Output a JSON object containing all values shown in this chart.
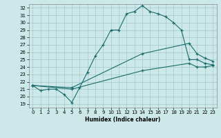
{
  "xlabel": "Humidex (Indice chaleur)",
  "bg_color": "#cce8e8",
  "line_color": "#1a6b6b",
  "xlim": [
    -0.5,
    23.5
  ],
  "ylim": [
    18.5,
    32.5
  ],
  "yticks": [
    19,
    20,
    21,
    22,
    23,
    24,
    25,
    26,
    27,
    28,
    29,
    30,
    31,
    32
  ],
  "xticks": [
    0,
    1,
    2,
    3,
    4,
    5,
    6,
    7,
    8,
    9,
    10,
    11,
    12,
    13,
    14,
    15,
    16,
    17,
    18,
    19,
    20,
    21,
    22,
    23
  ],
  "lines": [
    {
      "x": [
        0,
        1,
        2,
        3,
        4,
        5,
        6,
        7,
        8,
        9,
        10,
        11,
        12,
        13,
        14,
        15,
        16,
        17,
        18,
        19,
        20,
        21,
        22,
        23
      ],
      "y": [
        21.5,
        20.8,
        21.0,
        21.0,
        20.3,
        19.2,
        21.2,
        23.3,
        25.5,
        27.0,
        29.0,
        29.0,
        31.2,
        31.5,
        32.3,
        31.5,
        31.2,
        30.8,
        30.0,
        29.0,
        25.0,
        25.0,
        24.5,
        24.3
      ]
    },
    {
      "x": [
        0,
        5,
        14,
        20,
        21,
        22,
        23
      ],
      "y": [
        21.5,
        21.2,
        25.8,
        27.2,
        25.8,
        25.2,
        24.8
      ]
    },
    {
      "x": [
        0,
        5,
        14,
        20,
        21,
        22,
        23
      ],
      "y": [
        21.5,
        21.0,
        23.5,
        24.5,
        24.0,
        24.0,
        24.2
      ]
    }
  ]
}
